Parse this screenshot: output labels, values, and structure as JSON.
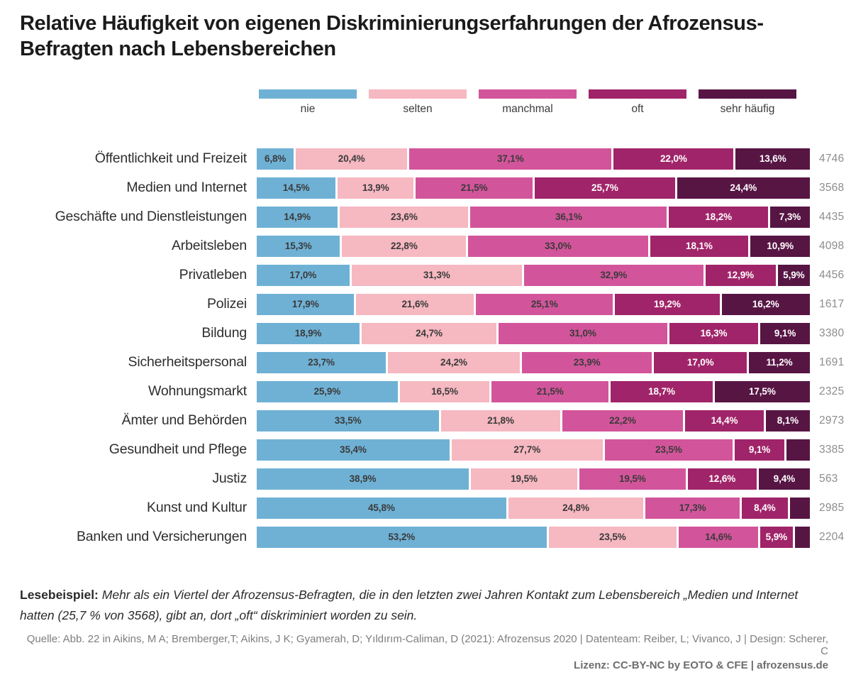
{
  "title": "Relative Häufigkeit von eigenen Diskriminierungserfahrungen der Afrozensus-Befragten nach Lebensbereichen",
  "chart_data": {
    "type": "bar",
    "stacked": true,
    "orientation": "horizontal",
    "unit": "%",
    "xlim": [
      0,
      100
    ],
    "legend_position": "top",
    "series": [
      {
        "name": "nie",
        "color": "#6FB1D5",
        "label_color": "#3a3a3a"
      },
      {
        "name": "selten",
        "color": "#F6B8C1",
        "label_color": "#3a3a3a"
      },
      {
        "name": "manchmal",
        "color": "#D2559B",
        "label_color": "#3a3a3a"
      },
      {
        "name": "oft",
        "color": "#A02469",
        "label_color": "#ffffff"
      },
      {
        "name": "sehr häufig",
        "color": "#571544",
        "label_color": "#ffffff"
      }
    ],
    "rows": [
      {
        "category": "Öffentlichkeit und Freizeit",
        "n": "4746",
        "values": [
          6.8,
          20.4,
          37.1,
          22.0,
          13.6
        ],
        "labels": [
          "6,8%",
          "20,4%",
          "37,1%",
          "22,0%",
          "13,6%"
        ]
      },
      {
        "category": "Medien und Internet",
        "n": "3568",
        "values": [
          14.5,
          13.9,
          21.5,
          25.7,
          24.4
        ],
        "labels": [
          "14,5%",
          "13,9%",
          "21,5%",
          "25,7%",
          "24,4%"
        ]
      },
      {
        "category": "Geschäfte und Dienstleistungen",
        "n": "4435",
        "values": [
          14.9,
          23.6,
          36.1,
          18.2,
          7.3
        ],
        "labels": [
          "14,9%",
          "23,6%",
          "36,1%",
          "18,2%",
          "7,3%"
        ]
      },
      {
        "category": "Arbeitsleben",
        "n": "4098",
        "values": [
          15.3,
          22.8,
          33.0,
          18.1,
          10.9
        ],
        "labels": [
          "15,3%",
          "22,8%",
          "33,0%",
          "18,1%",
          "10,9%"
        ]
      },
      {
        "category": "Privatleben",
        "n": "4456",
        "values": [
          17.0,
          31.3,
          32.9,
          12.9,
          5.9
        ],
        "labels": [
          "17,0%",
          "31,3%",
          "32,9%",
          "12,9%",
          "5,9%"
        ]
      },
      {
        "category": "Polizei",
        "n": "1617",
        "values": [
          17.9,
          21.6,
          25.1,
          19.2,
          16.2
        ],
        "labels": [
          "17,9%",
          "21,6%",
          "25,1%",
          "19,2%",
          "16,2%"
        ]
      },
      {
        "category": "Bildung",
        "n": "3380",
        "values": [
          18.9,
          24.7,
          31.0,
          16.3,
          9.1
        ],
        "labels": [
          "18,9%",
          "24,7%",
          "31,0%",
          "16,3%",
          "9,1%"
        ]
      },
      {
        "category": "Sicherheitspersonal",
        "n": "1691",
        "values": [
          23.7,
          24.2,
          23.9,
          17.0,
          11.2
        ],
        "labels": [
          "23,7%",
          "24,2%",
          "23,9%",
          "17,0%",
          "11,2%"
        ]
      },
      {
        "category": "Wohnungsmarkt",
        "n": "2325",
        "values": [
          25.9,
          16.5,
          21.5,
          18.7,
          17.5
        ],
        "labels": [
          "25,9%",
          "16,5%",
          "21,5%",
          "18,7%",
          "17,5%"
        ]
      },
      {
        "category": "Ämter und Behörden",
        "n": "2973",
        "values": [
          33.5,
          21.8,
          22.2,
          14.4,
          8.1
        ],
        "labels": [
          "33,5%",
          "21,8%",
          "22,2%",
          "14,4%",
          "8,1%"
        ]
      },
      {
        "category": "Gesundheit und Pflege",
        "n": "3385",
        "values": [
          35.4,
          27.7,
          23.5,
          9.1,
          4.3
        ],
        "labels": [
          "35,4%",
          "27,7%",
          "23,5%",
          "9,1%",
          null
        ]
      },
      {
        "category": "Justiz",
        "n": "563",
        "values": [
          38.9,
          19.5,
          19.5,
          12.6,
          9.4
        ],
        "labels": [
          "38,9%",
          "19,5%",
          "19,5%",
          "12,6%",
          "9,4%"
        ]
      },
      {
        "category": "Kunst und Kultur",
        "n": "2985",
        "values": [
          45.8,
          24.8,
          17.3,
          8.4,
          3.7
        ],
        "labels": [
          "45,8%",
          "24,8%",
          "17,3%",
          "8,4%",
          null
        ]
      },
      {
        "category": "Banken und Versicherungen",
        "n": "2204",
        "values": [
          53.2,
          23.5,
          14.6,
          5.9,
          2.8
        ],
        "labels": [
          "53,2%",
          "23,5%",
          "14,6%",
          "5,9%",
          null
        ]
      }
    ]
  },
  "lesebeispiel": {
    "label": "Lesebeispiel:",
    "text": "Mehr als ein Viertel der Afrozensus-Befragten, die in den letzten zwei Jahren Kontakt zum Lebensbereich „Medien und Internet hatten (25,7 % von 3568), gibt an, dort „oft“ diskriminiert worden zu sein."
  },
  "footer": {
    "source": "Quelle: Abb. 22 in Aikins, M A; Bremberger,T; Aikins, J K; Gyamerah, D; Yıldırım-Caliman, D (2021): Afrozensus 2020 | Datenteam: Reiber, L; Vivanco, J | Design: Scherer, C",
    "license": "Lizenz: CC-BY-NC by EOTO & CFE | afrozensus.de"
  }
}
